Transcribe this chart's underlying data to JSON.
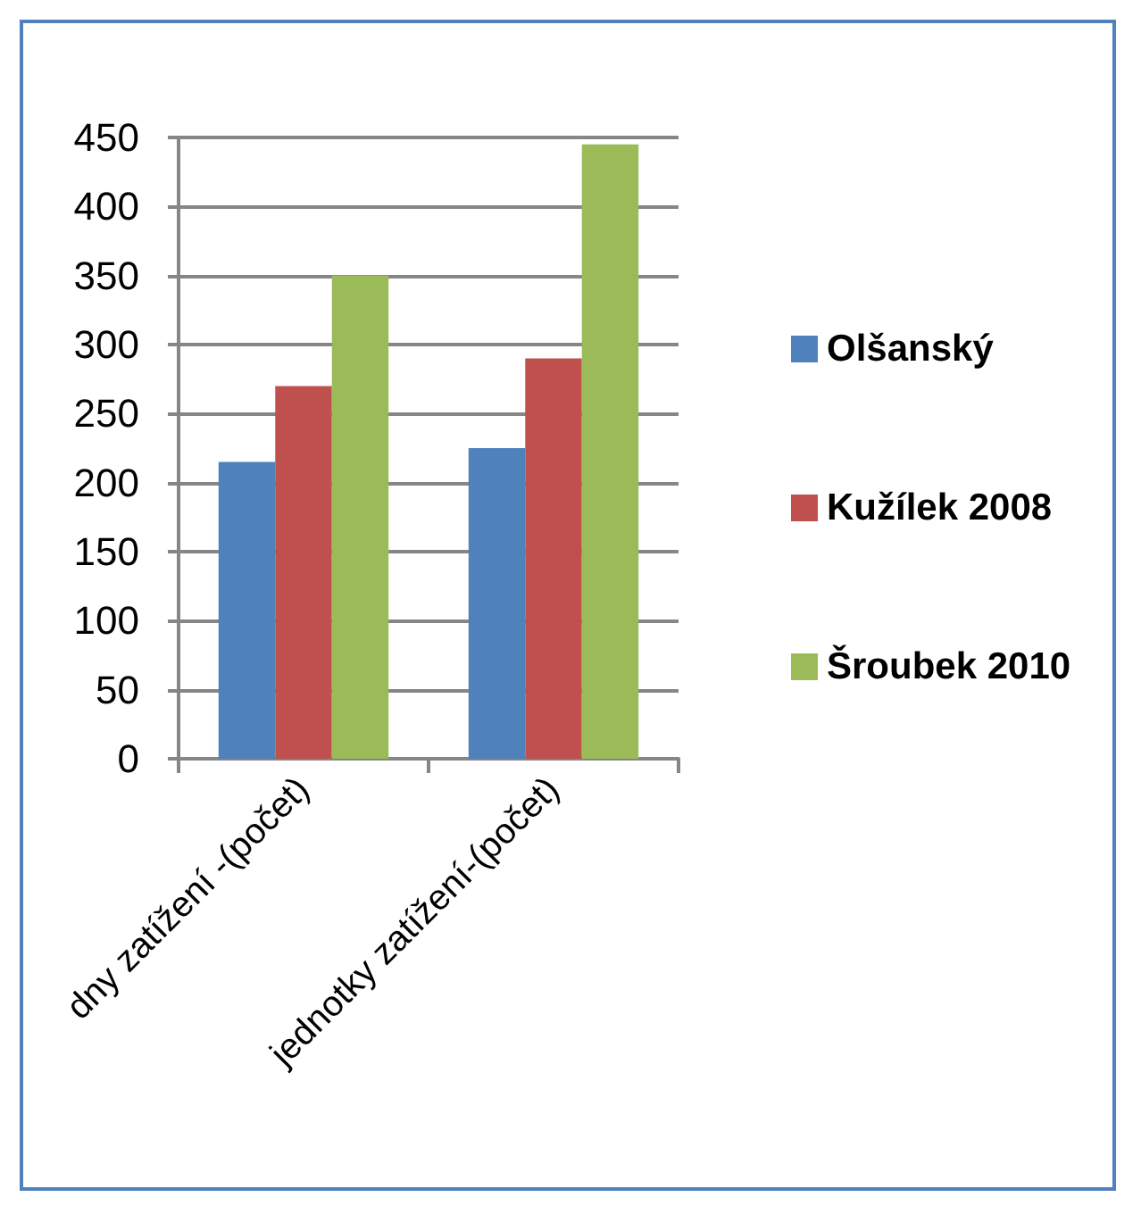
{
  "chart_data": {
    "type": "bar",
    "categories": [
      "dny zatížení -(počet)",
      "jednotky zatížení-(počet)"
    ],
    "series": [
      {
        "name": "Olšanský",
        "color": "#4f81bd",
        "values": [
          215,
          225
        ]
      },
      {
        "name": "Kužílek 2008",
        "color": "#c0504d",
        "values": [
          270,
          290
        ]
      },
      {
        "name": "Šroubek 2010",
        "color": "#9bbb59",
        "values": [
          350,
          445
        ]
      }
    ],
    "ylim": [
      0,
      450
    ],
    "yticks": [
      0,
      50,
      100,
      150,
      200,
      250,
      300,
      350,
      400,
      450
    ],
    "grid": "y",
    "legend": "right"
  }
}
